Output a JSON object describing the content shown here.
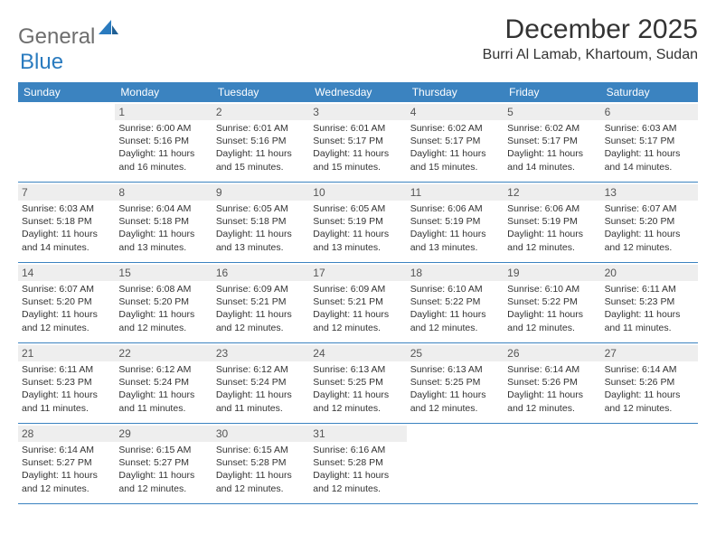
{
  "logo": {
    "text1": "General",
    "text2": "Blue"
  },
  "title": "December 2025",
  "location": "Burri Al Lamab, Khartoum, Sudan",
  "colors": {
    "header_bg": "#3b83c0",
    "header_text": "#ffffff",
    "daynum_bg": "#eeeeee",
    "daynum_text": "#555555",
    "border": "#3b83c0",
    "logo_gray": "#6e6e6e",
    "logo_blue": "#2a7bbf"
  },
  "dow": [
    "Sunday",
    "Monday",
    "Tuesday",
    "Wednesday",
    "Thursday",
    "Friday",
    "Saturday"
  ],
  "weeks": [
    [
      {
        "day": "",
        "sunrise": "",
        "sunset": "",
        "daylight": ""
      },
      {
        "day": "1",
        "sunrise": "Sunrise: 6:00 AM",
        "sunset": "Sunset: 5:16 PM",
        "daylight": "Daylight: 11 hours and 16 minutes."
      },
      {
        "day": "2",
        "sunrise": "Sunrise: 6:01 AM",
        "sunset": "Sunset: 5:16 PM",
        "daylight": "Daylight: 11 hours and 15 minutes."
      },
      {
        "day": "3",
        "sunrise": "Sunrise: 6:01 AM",
        "sunset": "Sunset: 5:17 PM",
        "daylight": "Daylight: 11 hours and 15 minutes."
      },
      {
        "day": "4",
        "sunrise": "Sunrise: 6:02 AM",
        "sunset": "Sunset: 5:17 PM",
        "daylight": "Daylight: 11 hours and 15 minutes."
      },
      {
        "day": "5",
        "sunrise": "Sunrise: 6:02 AM",
        "sunset": "Sunset: 5:17 PM",
        "daylight": "Daylight: 11 hours and 14 minutes."
      },
      {
        "day": "6",
        "sunrise": "Sunrise: 6:03 AM",
        "sunset": "Sunset: 5:17 PM",
        "daylight": "Daylight: 11 hours and 14 minutes."
      }
    ],
    [
      {
        "day": "7",
        "sunrise": "Sunrise: 6:03 AM",
        "sunset": "Sunset: 5:18 PM",
        "daylight": "Daylight: 11 hours and 14 minutes."
      },
      {
        "day": "8",
        "sunrise": "Sunrise: 6:04 AM",
        "sunset": "Sunset: 5:18 PM",
        "daylight": "Daylight: 11 hours and 13 minutes."
      },
      {
        "day": "9",
        "sunrise": "Sunrise: 6:05 AM",
        "sunset": "Sunset: 5:18 PM",
        "daylight": "Daylight: 11 hours and 13 minutes."
      },
      {
        "day": "10",
        "sunrise": "Sunrise: 6:05 AM",
        "sunset": "Sunset: 5:19 PM",
        "daylight": "Daylight: 11 hours and 13 minutes."
      },
      {
        "day": "11",
        "sunrise": "Sunrise: 6:06 AM",
        "sunset": "Sunset: 5:19 PM",
        "daylight": "Daylight: 11 hours and 13 minutes."
      },
      {
        "day": "12",
        "sunrise": "Sunrise: 6:06 AM",
        "sunset": "Sunset: 5:19 PM",
        "daylight": "Daylight: 11 hours and 12 minutes."
      },
      {
        "day": "13",
        "sunrise": "Sunrise: 6:07 AM",
        "sunset": "Sunset: 5:20 PM",
        "daylight": "Daylight: 11 hours and 12 minutes."
      }
    ],
    [
      {
        "day": "14",
        "sunrise": "Sunrise: 6:07 AM",
        "sunset": "Sunset: 5:20 PM",
        "daylight": "Daylight: 11 hours and 12 minutes."
      },
      {
        "day": "15",
        "sunrise": "Sunrise: 6:08 AM",
        "sunset": "Sunset: 5:20 PM",
        "daylight": "Daylight: 11 hours and 12 minutes."
      },
      {
        "day": "16",
        "sunrise": "Sunrise: 6:09 AM",
        "sunset": "Sunset: 5:21 PM",
        "daylight": "Daylight: 11 hours and 12 minutes."
      },
      {
        "day": "17",
        "sunrise": "Sunrise: 6:09 AM",
        "sunset": "Sunset: 5:21 PM",
        "daylight": "Daylight: 11 hours and 12 minutes."
      },
      {
        "day": "18",
        "sunrise": "Sunrise: 6:10 AM",
        "sunset": "Sunset: 5:22 PM",
        "daylight": "Daylight: 11 hours and 12 minutes."
      },
      {
        "day": "19",
        "sunrise": "Sunrise: 6:10 AM",
        "sunset": "Sunset: 5:22 PM",
        "daylight": "Daylight: 11 hours and 12 minutes."
      },
      {
        "day": "20",
        "sunrise": "Sunrise: 6:11 AM",
        "sunset": "Sunset: 5:23 PM",
        "daylight": "Daylight: 11 hours and 11 minutes."
      }
    ],
    [
      {
        "day": "21",
        "sunrise": "Sunrise: 6:11 AM",
        "sunset": "Sunset: 5:23 PM",
        "daylight": "Daylight: 11 hours and 11 minutes."
      },
      {
        "day": "22",
        "sunrise": "Sunrise: 6:12 AM",
        "sunset": "Sunset: 5:24 PM",
        "daylight": "Daylight: 11 hours and 11 minutes."
      },
      {
        "day": "23",
        "sunrise": "Sunrise: 6:12 AM",
        "sunset": "Sunset: 5:24 PM",
        "daylight": "Daylight: 11 hours and 11 minutes."
      },
      {
        "day": "24",
        "sunrise": "Sunrise: 6:13 AM",
        "sunset": "Sunset: 5:25 PM",
        "daylight": "Daylight: 11 hours and 12 minutes."
      },
      {
        "day": "25",
        "sunrise": "Sunrise: 6:13 AM",
        "sunset": "Sunset: 5:25 PM",
        "daylight": "Daylight: 11 hours and 12 minutes."
      },
      {
        "day": "26",
        "sunrise": "Sunrise: 6:14 AM",
        "sunset": "Sunset: 5:26 PM",
        "daylight": "Daylight: 11 hours and 12 minutes."
      },
      {
        "day": "27",
        "sunrise": "Sunrise: 6:14 AM",
        "sunset": "Sunset: 5:26 PM",
        "daylight": "Daylight: 11 hours and 12 minutes."
      }
    ],
    [
      {
        "day": "28",
        "sunrise": "Sunrise: 6:14 AM",
        "sunset": "Sunset: 5:27 PM",
        "daylight": "Daylight: 11 hours and 12 minutes."
      },
      {
        "day": "29",
        "sunrise": "Sunrise: 6:15 AM",
        "sunset": "Sunset: 5:27 PM",
        "daylight": "Daylight: 11 hours and 12 minutes."
      },
      {
        "day": "30",
        "sunrise": "Sunrise: 6:15 AM",
        "sunset": "Sunset: 5:28 PM",
        "daylight": "Daylight: 11 hours and 12 minutes."
      },
      {
        "day": "31",
        "sunrise": "Sunrise: 6:16 AM",
        "sunset": "Sunset: 5:28 PM",
        "daylight": "Daylight: 11 hours and 12 minutes."
      },
      {
        "day": "",
        "sunrise": "",
        "sunset": "",
        "daylight": ""
      },
      {
        "day": "",
        "sunrise": "",
        "sunset": "",
        "daylight": ""
      },
      {
        "day": "",
        "sunrise": "",
        "sunset": "",
        "daylight": ""
      }
    ]
  ]
}
